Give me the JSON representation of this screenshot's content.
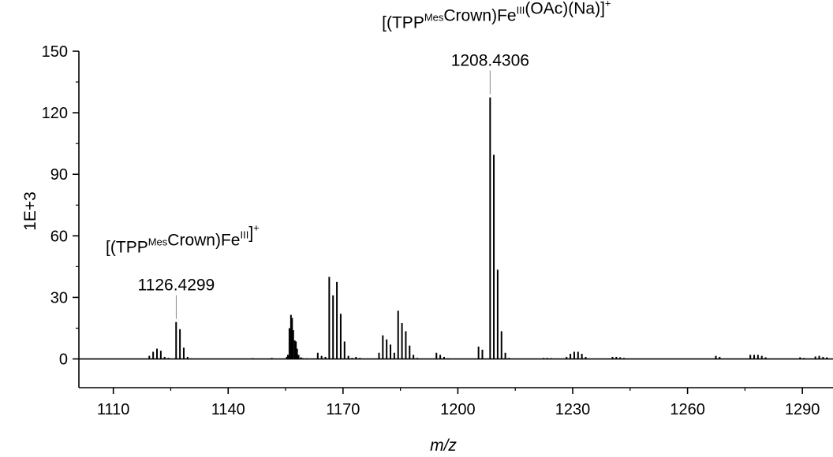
{
  "chart_data": {
    "type": "bar",
    "title": "",
    "xlabel": "m/z",
    "ylabel": "1E+3",
    "xlim": [
      1101,
      1298
    ],
    "ylim": [
      -14,
      150
    ],
    "xticks": [
      1110,
      1140,
      1170,
      1200,
      1230,
      1260,
      1290
    ],
    "yticks": [
      0,
      30,
      60,
      90,
      120,
      150
    ],
    "grid": false,
    "series": [
      {
        "x": [
          1119.4,
          1120.4,
          1121.4,
          1122.4,
          1123.4,
          1124.4,
          1126.4,
          1127.4,
          1128.4,
          1129.4,
          1130.4,
          1146.4,
          1151.4,
          1155.3,
          1155.6,
          1156.0,
          1156.4,
          1156.7,
          1157.0,
          1157.4,
          1157.7,
          1158.0,
          1158.4,
          1159.0,
          1159.5,
          1160.5,
          1163.4,
          1164.4,
          1165.4,
          1166.4,
          1167.4,
          1168.4,
          1169.4,
          1170.4,
          1171.4,
          1172.4,
          1173.4,
          1174.4,
          1179.4,
          1180.4,
          1181.4,
          1182.4,
          1183.4,
          1184.4,
          1185.4,
          1186.4,
          1187.4,
          1188.4,
          1189.4,
          1194.4,
          1195.4,
          1196.4,
          1197.4,
          1205.4,
          1206.4,
          1208.4306,
          1209.4,
          1210.4,
          1211.4,
          1212.4,
          1213.4,
          1222.4,
          1223.4,
          1224.4,
          1228.4,
          1229.4,
          1230.4,
          1231.4,
          1232.4,
          1233.4,
          1240.4,
          1241.4,
          1242.4,
          1243.4,
          1267.4,
          1268.4,
          1276.4,
          1277.4,
          1278.4,
          1279.4,
          1280.4,
          1289.4,
          1290.4,
          1293.4,
          1294.4,
          1295.4,
          1296.4
        ],
        "values": [
          1.5,
          3.5,
          5.0,
          4.0,
          1.0,
          0.5,
          18.0,
          14.5,
          5.5,
          1.0,
          0.3,
          0.4,
          0.5,
          1.0,
          2.0,
          15.0,
          21.5,
          20.0,
          14.0,
          9.0,
          8.5,
          5.0,
          2.0,
          0.8,
          0.4,
          0.3,
          3.0,
          1.5,
          1.0,
          40.0,
          31.0,
          37.5,
          22.0,
          8.5,
          1.5,
          0.5,
          1.0,
          0.5,
          3.0,
          11.5,
          9.5,
          7.0,
          3.0,
          23.5,
          17.5,
          13.5,
          6.5,
          2.0,
          0.5,
          3.0,
          2.0,
          1.0,
          0.3,
          6.0,
          4.5,
          127.5,
          99.5,
          43.5,
          13.5,
          3.0,
          0.5,
          0.5,
          0.5,
          0.4,
          1.0,
          2.5,
          3.5,
          3.5,
          2.5,
          1.0,
          1.0,
          1.0,
          0.8,
          0.5,
          1.5,
          1.0,
          2.0,
          2.0,
          2.0,
          1.5,
          0.8,
          0.8,
          0.5,
          1.2,
          1.5,
          1.0,
          0.8
        ]
      }
    ],
    "annotations": [
      {
        "label": "1126.4299",
        "x": 1126.4299,
        "y": 18.0
      },
      {
        "label": "1208.4306",
        "x": 1208.4306,
        "y": 127.5
      }
    ],
    "peak_labels": [
      {
        "x": 1126.4299,
        "y": 18.0,
        "parts": [
          [
            "[(TPP",
            ""
          ],
          [
            "Mes",
            "sup"
          ],
          [
            "Crown)Fe",
            ""
          ],
          [
            "III",
            "sup"
          ],
          [
            "]",
            ""
          ],
          [
            "+",
            "sup"
          ]
        ]
      },
      {
        "x": 1208.4306,
        "y": 127.5,
        "parts": [
          [
            "[(TPP",
            ""
          ],
          [
            "Mes",
            "sup"
          ],
          [
            "Crown)Fe",
            ""
          ],
          [
            "III",
            "sup"
          ],
          [
            "(OAc)(Na)]",
            ""
          ],
          [
            "+",
            "sup"
          ]
        ]
      }
    ]
  }
}
